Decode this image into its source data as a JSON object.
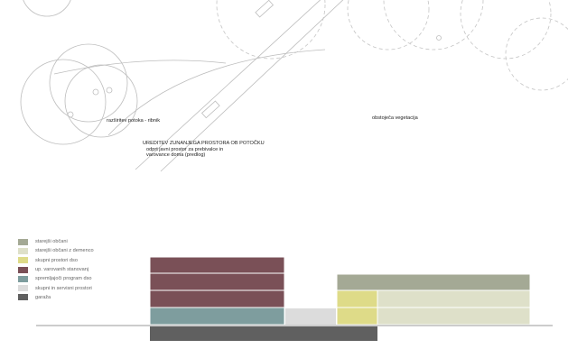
{
  "plan": {
    "labels": {
      "pond": "razširitev potoka - ribnik",
      "vegetation": "obstoječa vegetacija",
      "title": "UREDITEV ZUNANJEGA PROSTORA OB POTOČKU",
      "sub1": "odprt javni prostor za prebivalce in",
      "sub2": "varovance doma (predlog)"
    }
  },
  "legend": {
    "items": [
      {
        "label": "starejši občani",
        "color": "#a4a995"
      },
      {
        "label": "starejši občani z demenco",
        "color": "#dee0c9"
      },
      {
        "label": "skupni prostori dso",
        "color": "#dedb88"
      },
      {
        "label": "up. varovanih stanovanj",
        "color": "#7a5057"
      },
      {
        "label": "spremljajoči program dso",
        "color": "#7e9d9e"
      },
      {
        "label": "skupni in servisni prostori",
        "color": "#dcdcdc"
      },
      {
        "label": "garaža",
        "color": "#606060"
      }
    ]
  },
  "colors": {
    "line": "#bdbdbd",
    "dash": "#c4c4c4",
    "ground": "#999999"
  }
}
